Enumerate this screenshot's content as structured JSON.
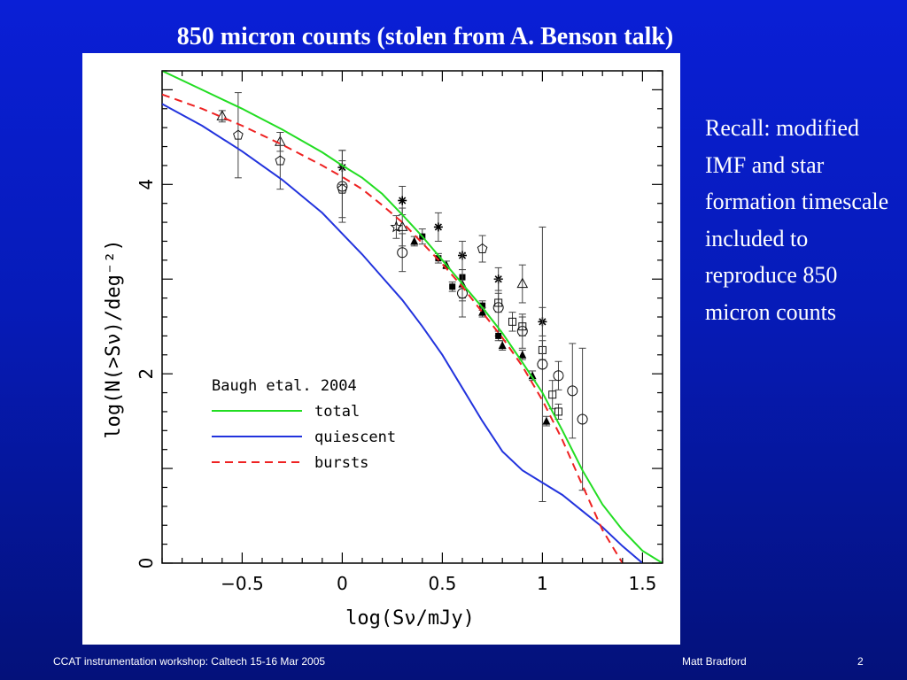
{
  "slide": {
    "title": "850 micron counts (stolen from A. Benson talk)",
    "side_note": "Recall: modified IMF and star formation timescale included to reproduce 850 micron counts",
    "footer_left": "CCAT instrumentation workshop:  Caltech 15-16 Mar 2005",
    "footer_author": "Matt Bradford",
    "footer_page": "2"
  },
  "chart_data": {
    "type": "line",
    "title": "",
    "xlabel": "log(Sν/mJy)",
    "ylabel": "log(N(>Sν)/deg⁻²)",
    "xlim": [
      -0.9,
      1.6
    ],
    "ylim": [
      0,
      5.2
    ],
    "x_tick_labels": [
      "−0.5",
      "0",
      "0.5",
      "1",
      "1.5"
    ],
    "x_ticks": [
      -0.5,
      0,
      0.5,
      1,
      1.5
    ],
    "y_tick_labels": [
      "0",
      "2",
      "4"
    ],
    "y_ticks": [
      0,
      2,
      4
    ],
    "grid": false,
    "legend": {
      "placement": "center-left",
      "title": "Baugh etal. 2004",
      "entries": [
        {
          "label": "total",
          "color": "#22dd22",
          "style": "solid"
        },
        {
          "label": "quiescent",
          "color": "#2233dd",
          "style": "solid"
        },
        {
          "label": "bursts",
          "color": "#ee2222",
          "style": "dashed"
        }
      ]
    },
    "series": [
      {
        "name": "total",
        "color": "#22dd22",
        "style": "solid",
        "x": [
          -0.9,
          -0.7,
          -0.5,
          -0.3,
          -0.1,
          0.0,
          0.1,
          0.2,
          0.3,
          0.4,
          0.5,
          0.6,
          0.7,
          0.8,
          0.9,
          1.0,
          1.1,
          1.2,
          1.3,
          1.4,
          1.5,
          1.6
        ],
        "y": [
          5.2,
          5.0,
          4.8,
          4.58,
          4.34,
          4.2,
          4.07,
          3.9,
          3.68,
          3.45,
          3.2,
          2.95,
          2.7,
          2.43,
          2.12,
          1.8,
          1.4,
          0.98,
          0.62,
          0.35,
          0.13,
          0.0
        ]
      },
      {
        "name": "quiescent",
        "color": "#2233dd",
        "style": "solid",
        "x": [
          -0.9,
          -0.7,
          -0.5,
          -0.3,
          -0.1,
          0.0,
          0.1,
          0.2,
          0.3,
          0.4,
          0.5,
          0.6,
          0.7,
          0.8,
          0.9,
          1.0,
          1.1,
          1.2,
          1.3,
          1.4,
          1.5
        ],
        "y": [
          4.85,
          4.62,
          4.35,
          4.05,
          3.7,
          3.48,
          3.26,
          3.02,
          2.78,
          2.5,
          2.2,
          1.85,
          1.5,
          1.18,
          0.98,
          0.85,
          0.72,
          0.55,
          0.38,
          0.18,
          0.0
        ]
      },
      {
        "name": "bursts",
        "color": "#ee2222",
        "style": "dashed",
        "x": [
          -0.9,
          -0.7,
          -0.5,
          -0.3,
          -0.1,
          0.0,
          0.1,
          0.2,
          0.3,
          0.4,
          0.5,
          0.6,
          0.7,
          0.8,
          0.9,
          1.0,
          1.1,
          1.2,
          1.3,
          1.4
        ],
        "y": [
          4.95,
          4.8,
          4.62,
          4.42,
          4.2,
          4.08,
          3.95,
          3.78,
          3.6,
          3.38,
          3.16,
          2.92,
          2.65,
          2.38,
          2.08,
          1.72,
          1.3,
          0.82,
          0.35,
          0.0
        ]
      }
    ],
    "observations": [
      {
        "x": -0.6,
        "y": 4.72,
        "err": 0.06,
        "marker": "triangle-open"
      },
      {
        "x": -0.52,
        "y": 4.52,
        "err": 0.45,
        "marker": "pentagon-open"
      },
      {
        "x": -0.31,
        "y": 4.45,
        "err": 0.1,
        "marker": "triangle-open"
      },
      {
        "x": -0.31,
        "y": 4.25,
        "err": 0.3,
        "marker": "pentagon-open"
      },
      {
        "x": 0.0,
        "y": 4.18,
        "err": 0.18,
        "marker": "asterisk"
      },
      {
        "x": 0.0,
        "y": 3.98,
        "err": 0.38,
        "marker": "circle-open"
      },
      {
        "x": 0.0,
        "y": 3.95,
        "err": 0.3,
        "marker": "pentagon-open"
      },
      {
        "x": 0.27,
        "y": 3.55,
        "err": 0.12,
        "marker": "star-open"
      },
      {
        "x": 0.3,
        "y": 3.83,
        "err": 0.15,
        "marker": "asterisk"
      },
      {
        "x": 0.3,
        "y": 3.55,
        "err": 0.2,
        "marker": "triangle-open"
      },
      {
        "x": 0.3,
        "y": 3.28,
        "err": 0.2,
        "marker": "circle-open"
      },
      {
        "x": 0.36,
        "y": 3.4,
        "err": 0.05,
        "marker": "triangle-filled"
      },
      {
        "x": 0.4,
        "y": 3.45,
        "err": 0.08,
        "marker": "square-filled"
      },
      {
        "x": 0.48,
        "y": 3.22,
        "err": 0.05,
        "marker": "square-filled"
      },
      {
        "x": 0.48,
        "y": 3.55,
        "err": 0.15,
        "marker": "asterisk"
      },
      {
        "x": 0.52,
        "y": 3.15,
        "err": 0.04,
        "marker": "triangle-filled"
      },
      {
        "x": 0.55,
        "y": 2.92,
        "err": 0.05,
        "marker": "square-filled"
      },
      {
        "x": 0.6,
        "y": 3.25,
        "err": 0.15,
        "marker": "asterisk"
      },
      {
        "x": 0.6,
        "y": 3.02,
        "err": 0.25,
        "marker": "square-filled"
      },
      {
        "x": 0.6,
        "y": 2.95,
        "err": 0.15,
        "marker": "triangle-filled"
      },
      {
        "x": 0.6,
        "y": 2.85,
        "err": 0.25,
        "marker": "circle-open"
      },
      {
        "x": 0.7,
        "y": 3.32,
        "err": 0.14,
        "marker": "pentagon-open"
      },
      {
        "x": 0.7,
        "y": 2.72,
        "err": 0.05,
        "marker": "square-filled"
      },
      {
        "x": 0.7,
        "y": 2.65,
        "err": 0.05,
        "marker": "triangle-filled"
      },
      {
        "x": 0.78,
        "y": 3.0,
        "err": 0.12,
        "marker": "asterisk"
      },
      {
        "x": 0.78,
        "y": 2.7,
        "err": 0.3,
        "marker": "circle-open"
      },
      {
        "x": 0.78,
        "y": 2.75,
        "err": 0.1,
        "marker": "square-open"
      },
      {
        "x": 0.78,
        "y": 2.4,
        "err": 0.05,
        "marker": "square-filled"
      },
      {
        "x": 0.8,
        "y": 2.3,
        "err": 0.05,
        "marker": "triangle-filled"
      },
      {
        "x": 0.85,
        "y": 2.55,
        "err": 0.1,
        "marker": "square-open"
      },
      {
        "x": 0.9,
        "y": 2.95,
        "err": 0.2,
        "marker": "triangle-open"
      },
      {
        "x": 0.9,
        "y": 2.45,
        "err": 0.18,
        "marker": "circle-open"
      },
      {
        "x": 0.9,
        "y": 2.5,
        "err": 0.1,
        "marker": "square-open"
      },
      {
        "x": 0.9,
        "y": 2.2,
        "err": 0.05,
        "marker": "triangle-filled"
      },
      {
        "x": 0.95,
        "y": 1.98,
        "err": 0.05,
        "marker": "triangle-filled"
      },
      {
        "x": 1.0,
        "y": 2.55,
        "err": 0.15,
        "marker": "asterisk"
      },
      {
        "x": 1.0,
        "y": 2.25,
        "err": 0.1,
        "marker": "square-open"
      },
      {
        "x": 1.0,
        "y": 2.1,
        "err": 1.45,
        "marker": "circle-open"
      },
      {
        "x": 1.02,
        "y": 1.5,
        "err": 0.05,
        "marker": "triangle-filled"
      },
      {
        "x": 1.05,
        "y": 1.78,
        "err": 0.15,
        "marker": "square-open"
      },
      {
        "x": 1.08,
        "y": 1.98,
        "err": 0.15,
        "marker": "circle-open"
      },
      {
        "x": 1.08,
        "y": 1.6,
        "err": 0.08,
        "marker": "square-open"
      },
      {
        "x": 1.15,
        "y": 1.82,
        "err": 0.5,
        "marker": "circle-open"
      },
      {
        "x": 1.2,
        "y": 1.52,
        "err": 0.75,
        "marker": "circle-open"
      }
    ]
  }
}
